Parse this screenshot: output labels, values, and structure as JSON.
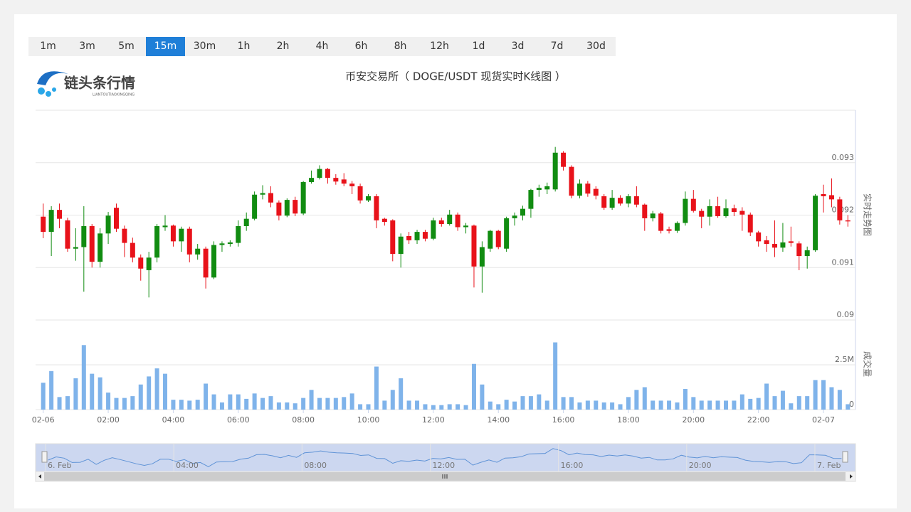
{
  "tabs": {
    "items": [
      "1m",
      "3m",
      "5m",
      "15m",
      "30m",
      "1h",
      "2h",
      "4h",
      "6h",
      "8h",
      "12h",
      "1d",
      "3d",
      "7d",
      "30d"
    ],
    "selected": "15m"
  },
  "logo": {
    "name": "链头条行情",
    "subtitle": "LIANTOUTIAOXINGQING"
  },
  "chart_data": {
    "type": "candlestick",
    "title": "币安交易所（ DOGE/USDT 现货实时K线图 ）",
    "y_axis_label": "实时走势图",
    "volume_axis_label": "成交量",
    "up_color": "#118c11",
    "down_color": "#e8121a",
    "volume_color": "#7fb3ea",
    "grid": true,
    "categories": [
      "02-06",
      null,
      null,
      null,
      null,
      null,
      null,
      null,
      "02:00",
      null,
      null,
      null,
      null,
      null,
      null,
      null,
      "04:00",
      null,
      null,
      null,
      null,
      null,
      null,
      null,
      "06:00",
      null,
      null,
      null,
      null,
      null,
      null,
      null,
      "08:00",
      null,
      null,
      null,
      null,
      null,
      null,
      null,
      "10:00",
      null,
      null,
      null,
      null,
      null,
      null,
      null,
      "12:00",
      null,
      null,
      null,
      null,
      null,
      null,
      null,
      "14:00",
      null,
      null,
      null,
      null,
      null,
      null,
      null,
      "16:00",
      null,
      null,
      null,
      null,
      null,
      null,
      null,
      "18:00",
      null,
      null,
      null,
      null,
      null,
      null,
      null,
      "20:00",
      null,
      null,
      null,
      null,
      null,
      null,
      null,
      "22:00",
      null,
      null,
      null,
      null,
      null,
      null,
      null,
      "02-07",
      null,
      null,
      null
    ],
    "open": [
      0.09197,
      0.09168,
      0.0921,
      0.0919,
      0.09136,
      0.09139,
      0.09179,
      0.09111,
      0.09165,
      0.09214,
      0.09174,
      0.09147,
      0.09119,
      0.09095,
      0.09119,
      0.09177,
      0.0918,
      0.0915,
      0.09174,
      0.09125,
      0.09136,
      0.09081,
      0.09143,
      0.09145,
      0.09147,
      0.09179,
      0.09193,
      0.09239,
      0.09242,
      0.09224,
      0.09199,
      0.09229,
      0.09203,
      0.09263,
      0.09271,
      0.09288,
      0.09271,
      0.09268,
      0.0926,
      0.09255,
      0.09228,
      0.09236,
      0.09193,
      0.0919,
      0.09126,
      0.0916,
      0.09152,
      0.09168,
      0.09155,
      0.0919,
      0.09183,
      0.09201,
      0.09177,
      0.0918,
      0.09102,
      0.09136,
      0.0917,
      0.09136,
      0.09194,
      0.09199,
      0.09212,
      0.09248,
      0.09249,
      0.09249,
      0.09319,
      0.09292,
      0.09237,
      0.0926,
      0.0925,
      0.09236,
      0.09214,
      0.09233,
      0.09222,
      0.09236,
      0.0922,
      0.09194,
      0.09203,
      0.09173,
      0.0917,
      0.09185,
      0.09231,
      0.09208,
      0.09197,
      0.09217,
      0.09198,
      0.09213,
      0.09208,
      0.09201,
      0.09167,
      0.09152,
      0.09145,
      0.09138,
      0.0915,
      0.09146,
      0.09122,
      0.09133,
      0.0924,
      0.09238,
      0.0923,
      0.0919
    ],
    "high": [
      0.09222,
      0.09217,
      0.09222,
      0.09195,
      0.09175,
      0.09217,
      0.09183,
      0.09175,
      0.09206,
      0.09222,
      0.0918,
      0.09157,
      0.09125,
      0.0913,
      0.09183,
      0.092,
      0.09182,
      0.09178,
      0.09178,
      0.09145,
      0.0914,
      0.0915,
      0.0915,
      0.09152,
      0.0919,
      0.09205,
      0.09245,
      0.09257,
      0.09255,
      0.09228,
      0.09232,
      0.09235,
      0.09265,
      0.09285,
      0.09295,
      0.0929,
      0.09278,
      0.0928,
      0.09265,
      0.0926,
      0.0924,
      0.0924,
      0.09195,
      0.09192,
      0.09165,
      0.09168,
      0.09172,
      0.09172,
      0.09195,
      0.09195,
      0.0921,
      0.09205,
      0.09185,
      0.09182,
      0.0915,
      0.09172,
      0.09172,
      0.09197,
      0.09205,
      0.09218,
      0.0925,
      0.09258,
      0.09262,
      0.0933,
      0.09322,
      0.09295,
      0.09268,
      0.09265,
      0.09255,
      0.0924,
      0.09248,
      0.09238,
      0.0924,
      0.09255,
      0.09222,
      0.09208,
      0.09206,
      0.09178,
      0.09188,
      0.09245,
      0.09248,
      0.09212,
      0.0923,
      0.09235,
      0.0923,
      0.0922,
      0.09215,
      0.09205,
      0.0917,
      0.0916,
      0.0919,
      0.09185,
      0.09178,
      0.0915,
      0.0914,
      0.0924,
      0.09258,
      0.0927,
      0.09235,
      0.092
    ],
    "low": [
      0.09156,
      0.09122,
      0.09175,
      0.0913,
      0.09113,
      0.09054,
      0.091,
      0.091,
      0.09145,
      0.09168,
      0.0912,
      0.0911,
      0.09075,
      0.09043,
      0.0911,
      0.0917,
      0.0914,
      0.0913,
      0.0911,
      0.09115,
      0.0906,
      0.09078,
      0.0913,
      0.0914,
      0.0914,
      0.0917,
      0.0919,
      0.0923,
      0.09215,
      0.0919,
      0.09196,
      0.09198,
      0.092,
      0.0926,
      0.09268,
      0.0926,
      0.09258,
      0.09255,
      0.0924,
      0.09222,
      0.09225,
      0.09175,
      0.0918,
      0.09112,
      0.091,
      0.09145,
      0.09145,
      0.0915,
      0.09152,
      0.09178,
      0.0918,
      0.0917,
      0.09165,
      0.09062,
      0.09052,
      0.0913,
      0.09135,
      0.0913,
      0.0918,
      0.0919,
      0.09195,
      0.09235,
      0.0924,
      0.09245,
      0.09285,
      0.09232,
      0.09232,
      0.09235,
      0.0923,
      0.0921,
      0.0921,
      0.09218,
      0.09215,
      0.09215,
      0.0917,
      0.09188,
      0.09165,
      0.09165,
      0.09166,
      0.0918,
      0.09205,
      0.09175,
      0.0918,
      0.09195,
      0.09195,
      0.09198,
      0.0917,
      0.0916,
      0.0914,
      0.0913,
      0.0912,
      0.0913,
      0.0914,
      0.09095,
      0.09098,
      0.0913,
      0.09205,
      0.09215,
      0.09182,
      0.09178
    ],
    "close": [
      0.09168,
      0.0921,
      0.09193,
      0.09136,
      0.09139,
      0.09179,
      0.09111,
      0.09165,
      0.09199,
      0.09174,
      0.09147,
      0.09119,
      0.09098,
      0.09119,
      0.09179,
      0.0918,
      0.0915,
      0.09174,
      0.09125,
      0.09136,
      0.09081,
      0.09143,
      0.09146,
      0.09148,
      0.09179,
      0.09193,
      0.09239,
      0.09242,
      0.09224,
      0.09199,
      0.09229,
      0.09203,
      0.09263,
      0.09271,
      0.09288,
      0.09271,
      0.09264,
      0.0926,
      0.09255,
      0.09228,
      0.09236,
      0.0919,
      0.09187,
      0.09126,
      0.09159,
      0.09152,
      0.09168,
      0.09155,
      0.0919,
      0.09183,
      0.09201,
      0.09177,
      0.0918,
      0.09102,
      0.09139,
      0.0917,
      0.09139,
      0.09194,
      0.09199,
      0.09212,
      0.09248,
      0.09252,
      0.09255,
      0.09319,
      0.09292,
      0.09237,
      0.0926,
      0.09241,
      0.09237,
      0.09214,
      0.09233,
      0.09222,
      0.09236,
      0.0922,
      0.09194,
      0.09203,
      0.0917,
      0.0917,
      0.09185,
      0.09231,
      0.09208,
      0.09197,
      0.09217,
      0.09198,
      0.09213,
      0.09206,
      0.09201,
      0.09167,
      0.0915,
      0.09145,
      0.09138,
      0.09148,
      0.09147,
      0.09122,
      0.09133,
      0.09237,
      0.09236,
      0.0923,
      0.0919,
      0.09188
    ],
    "volume": [
      1500000,
      2150000,
      700000,
      750000,
      1750000,
      3600000,
      2000000,
      1800000,
      950000,
      650000,
      650000,
      750000,
      1400000,
      1850000,
      2300000,
      2000000,
      550000,
      550000,
      500000,
      550000,
      1450000,
      850000,
      400000,
      850000,
      850000,
      600000,
      900000,
      650000,
      750000,
      400000,
      400000,
      350000,
      650000,
      1100000,
      650000,
      650000,
      650000,
      700000,
      900000,
      300000,
      300000,
      2400000,
      500000,
      1100000,
      1750000,
      500000,
      500000,
      300000,
      250000,
      250000,
      300000,
      300000,
      250000,
      2550000,
      1400000,
      450000,
      300000,
      550000,
      450000,
      750000,
      750000,
      850000,
      500000,
      3750000,
      700000,
      700000,
      400000,
      500000,
      500000,
      400000,
      400000,
      300000,
      700000,
      1100000,
      1250000,
      500000,
      500000,
      500000,
      400000,
      1150000,
      700000,
      500000,
      500000,
      500000,
      500000,
      500000,
      850000,
      600000,
      650000,
      1450000,
      750000,
      1050000,
      350000,
      750000,
      750000,
      1650000,
      1650000,
      1250000,
      1100000,
      300000
    ],
    "ylim": [
      0.09,
      0.094
    ],
    "yticks": [
      0.09,
      0.091,
      0.092,
      0.093
    ],
    "volume_lim": [
      0,
      5000000
    ],
    "volume_ticks": [
      0,
      {
        "value": 2500000,
        "label": "2.5M"
      }
    ],
    "navigator": {
      "labels": [
        "6. Feb",
        "04:00",
        "08:00",
        "12:00",
        "16:00",
        "20:00",
        "7. Feb"
      ]
    }
  }
}
